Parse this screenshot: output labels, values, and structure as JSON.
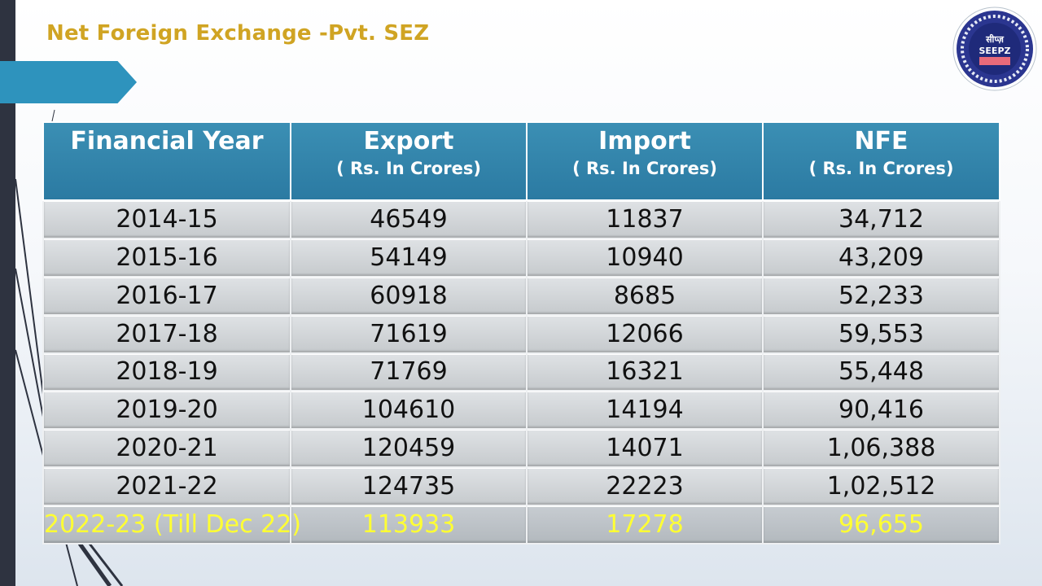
{
  "title": "Net Foreign Exchange -Pvt. SEZ",
  "logo": {
    "text_top": "सीप्ज़",
    "text_main": "SEEPZ"
  },
  "colors": {
    "title": "#d0a423",
    "header_bg": "#2b7aa2",
    "highlight_text": "#ffff33",
    "sidebar": "#2e3340",
    "tab": "#2e93bd"
  },
  "table": {
    "headers": [
      {
        "main": "Financial Year",
        "sub": ""
      },
      {
        "main": "Export",
        "sub": "( Rs. In Crores)"
      },
      {
        "main": "Import",
        "sub": "( Rs. In Crores)"
      },
      {
        "main": "NFE",
        "sub": "( Rs. In Crores)"
      }
    ],
    "rows": [
      [
        "2014-15",
        "46549",
        "11837",
        "34,712"
      ],
      [
        "2015-16",
        "54149",
        "10940",
        "43,209"
      ],
      [
        "2016-17",
        "60918",
        "8685",
        "52,233"
      ],
      [
        "2017-18",
        "71619",
        "12066",
        "59,553"
      ],
      [
        "2018-19",
        "71769",
        "16321",
        "55,448"
      ],
      [
        "2019-20",
        "104610",
        "14194",
        "90,416"
      ],
      [
        "2020-21",
        "120459",
        "14071",
        "1,06,388"
      ],
      [
        "2021-22",
        "124735",
        "22223",
        "1,02,512"
      ],
      [
        "2022-23 (Till Dec 22)",
        "113933",
        "17278",
        "96,655"
      ]
    ]
  }
}
